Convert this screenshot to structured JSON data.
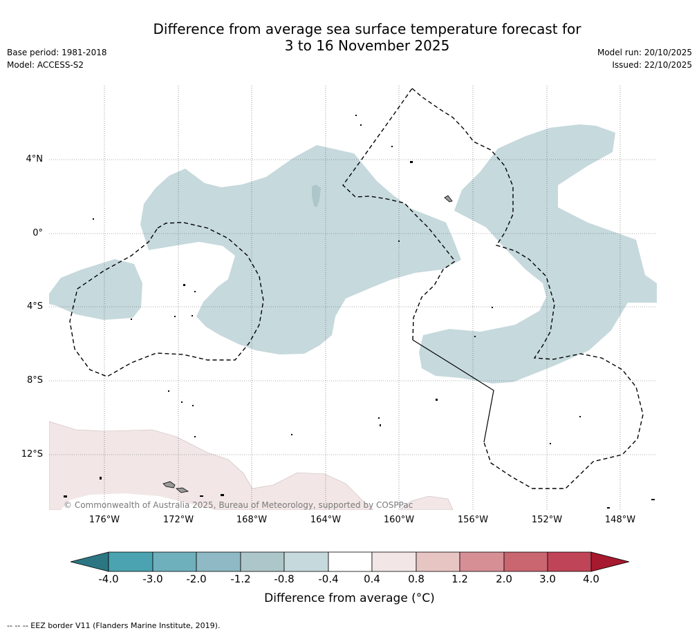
{
  "title": {
    "line1": "Difference from average sea surface temperature forecast for",
    "line2": "3 to 16 November 2025"
  },
  "meta": {
    "base_period": "Base period: 1981-2018",
    "model": "Model: ACCESS-S2",
    "model_run": "Model run: 20/10/2025",
    "issued": "Issued: 22/10/2025"
  },
  "map": {
    "lat_labels": [
      "4°N",
      "0°",
      "4°S",
      "8°S",
      "12°S"
    ],
    "lon_labels": [
      "176°W",
      "172°W",
      "168°W",
      "164°W",
      "160°W",
      "156°W",
      "152°W",
      "148°W"
    ],
    "copyright": "© Commonwealth of Australia 2025, Bureau of Meteorology, supported by COSPPac",
    "colors": {
      "cool_anomaly": "#c6d9dd",
      "warm_anomaly": "#f2e6e6",
      "cool_core": "#adc6ca",
      "eez_line": "#000000",
      "grid_line": "#555555"
    }
  },
  "colorbar": {
    "ticks": [
      "-4.0",
      "-3.0",
      "-2.0",
      "-1.2",
      "-0.8",
      "-0.4",
      "0.4",
      "0.8",
      "1.2",
      "2.0",
      "3.0",
      "4.0"
    ],
    "colors": [
      "#2b7682",
      "#4ba3b1",
      "#6fb0bd",
      "#8eb9c5",
      "#adc6ca",
      "#c6d9dd",
      "#ffffff",
      "#f2e6e6",
      "#e7c5c3",
      "#d68f95",
      "#c96670",
      "#c04457",
      "#a6192e"
    ],
    "label": "Difference from average (°C)"
  },
  "footer": "--  --  -- EEZ border V11 (Flanders Marine Institute, 2019)."
}
